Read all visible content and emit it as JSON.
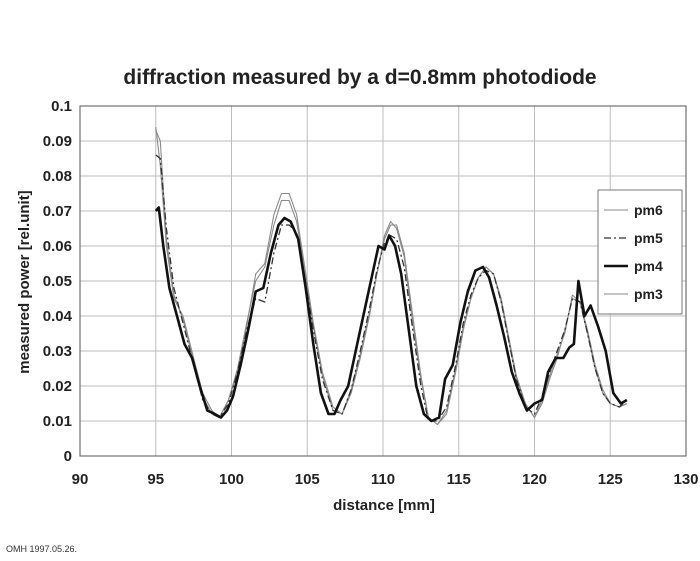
{
  "footer": "OMH 1997.05.26.",
  "colors": {
    "grid": "#bdbdbd",
    "axis": "#555555",
    "text": "#222222"
  },
  "chart_data": {
    "type": "line",
    "title": "diffraction measured by a d=0.8mm photodiode",
    "xlabel": "distance [mm]",
    "ylabel": "measured power [rel.unit]",
    "xlim": [
      90,
      130
    ],
    "ylim": [
      0,
      0.1
    ],
    "xticks": [
      90,
      95,
      100,
      105,
      110,
      115,
      120,
      125,
      130
    ],
    "yticks": [
      0,
      0.01,
      0.02,
      0.03,
      0.04,
      0.05,
      0.06,
      0.07,
      0.08,
      0.09,
      0.1
    ],
    "ytick_labels": [
      "0",
      "0.01",
      "0.02",
      "0.03",
      "0.04",
      "0.05",
      "0.06",
      "0.07",
      "0.08",
      "0.09",
      "0.1"
    ],
    "xtick_labels": [
      "90",
      "95",
      "100",
      "105",
      "110",
      "115",
      "120",
      "125",
      "130"
    ],
    "grid": true,
    "legend_position": "right",
    "series": [
      {
        "name": "pm6",
        "style": "thin",
        "x": [
          95,
          95.3,
          95.7,
          96.2,
          96.8,
          97.5,
          98.1,
          98.7,
          99.2,
          99.8,
          100.4,
          101,
          101.6,
          102.2,
          102.8,
          103.3,
          103.8,
          104.3,
          104.8,
          105.4,
          106,
          106.7,
          107.3,
          107.9,
          108.5,
          109.1,
          109.6,
          110.1,
          110.5,
          110.9,
          111.4,
          111.9,
          112.5,
          113,
          113.6,
          114.2,
          114.8,
          115.3,
          115.8,
          116.3,
          116.8,
          117.3,
          117.8,
          118.3,
          118.8,
          119.4,
          120,
          120.5,
          121,
          121.5,
          122,
          122.5,
          123,
          123.5,
          124,
          124.5,
          125,
          125.6,
          126.1
        ],
        "y": [
          0.094,
          0.083,
          0.06,
          0.045,
          0.04,
          0.028,
          0.018,
          0.013,
          0.011,
          0.016,
          0.024,
          0.037,
          0.052,
          0.055,
          0.069,
          0.075,
          0.075,
          0.069,
          0.055,
          0.038,
          0.024,
          0.014,
          0.012,
          0.018,
          0.028,
          0.04,
          0.052,
          0.062,
          0.066,
          0.066,
          0.058,
          0.042,
          0.023,
          0.011,
          0.009,
          0.012,
          0.024,
          0.036,
          0.045,
          0.051,
          0.054,
          0.052,
          0.045,
          0.034,
          0.023,
          0.015,
          0.011,
          0.015,
          0.022,
          0.028,
          0.036,
          0.045,
          0.044,
          0.036,
          0.026,
          0.019,
          0.015,
          0.014,
          0.015
        ]
      },
      {
        "name": "pm5",
        "style": "dashdot",
        "x": [
          95,
          95.3,
          95.7,
          96.2,
          96.8,
          97.5,
          98.1,
          98.7,
          99.2,
          99.8,
          100.4,
          101,
          101.6,
          102.2,
          102.8,
          103.3,
          103.8,
          104.3,
          104.8,
          105.4,
          106,
          106.7,
          107.3,
          107.9,
          108.5,
          109.1,
          109.6,
          110.1,
          110.5,
          110.9,
          111.4,
          111.9,
          112.5,
          113,
          113.6,
          114.2,
          114.8,
          115.3,
          115.8,
          116.3,
          116.8,
          117.3,
          117.8,
          118.3,
          118.8,
          119.4,
          120,
          120.5,
          121,
          121.5,
          122,
          122.5,
          123,
          123.5,
          124,
          124.5,
          125,
          125.6,
          126.1
        ],
        "y": [
          0.086,
          0.085,
          0.065,
          0.048,
          0.038,
          0.026,
          0.016,
          0.012,
          0.011,
          0.015,
          0.024,
          0.036,
          0.045,
          0.044,
          0.058,
          0.066,
          0.066,
          0.064,
          0.052,
          0.036,
          0.022,
          0.013,
          0.012,
          0.019,
          0.03,
          0.042,
          0.053,
          0.061,
          0.063,
          0.062,
          0.054,
          0.038,
          0.02,
          0.01,
          0.01,
          0.014,
          0.026,
          0.038,
          0.046,
          0.051,
          0.053,
          0.052,
          0.044,
          0.033,
          0.022,
          0.014,
          0.012,
          0.017,
          0.024,
          0.03,
          0.036,
          0.045,
          0.044,
          0.035,
          0.025,
          0.018,
          0.015,
          0.014,
          0.016
        ]
      },
      {
        "name": "pm4",
        "style": "thick",
        "x": [
          95,
          95.2,
          95.5,
          95.9,
          96.4,
          96.9,
          97.4,
          97.9,
          98.4,
          98.9,
          99.3,
          99.7,
          100.1,
          100.6,
          101.1,
          101.6,
          102.1,
          102.6,
          103.1,
          103.5,
          103.9,
          104.4,
          104.9,
          105.4,
          105.9,
          106.4,
          106.8,
          107.2,
          107.7,
          108.3,
          108.8,
          109.3,
          109.7,
          110.1,
          110.4,
          110.8,
          111.2,
          111.7,
          112.2,
          112.7,
          113.2,
          113.7,
          114.1,
          114.6,
          115.1,
          115.6,
          116.1,
          116.6,
          117,
          117.5,
          118,
          118.5,
          119,
          119.5,
          120,
          120.5,
          120.9,
          121.4,
          121.9,
          122.3,
          122.6,
          122.9,
          123.3,
          123.7,
          124.2,
          124.7,
          125.2,
          125.7,
          126.1
        ],
        "y": [
          0.07,
          0.071,
          0.06,
          0.048,
          0.04,
          0.032,
          0.028,
          0.02,
          0.013,
          0.012,
          0.011,
          0.013,
          0.017,
          0.026,
          0.036,
          0.047,
          0.048,
          0.058,
          0.066,
          0.068,
          0.067,
          0.062,
          0.048,
          0.032,
          0.018,
          0.012,
          0.012,
          0.016,
          0.02,
          0.032,
          0.042,
          0.052,
          0.06,
          0.059,
          0.063,
          0.06,
          0.052,
          0.036,
          0.02,
          0.012,
          0.01,
          0.011,
          0.022,
          0.026,
          0.038,
          0.047,
          0.053,
          0.054,
          0.051,
          0.043,
          0.034,
          0.024,
          0.018,
          0.013,
          0.015,
          0.016,
          0.024,
          0.028,
          0.028,
          0.031,
          0.032,
          0.05,
          0.04,
          0.043,
          0.037,
          0.03,
          0.018,
          0.015,
          0.016
        ]
      },
      {
        "name": "pm3",
        "style": "thin",
        "x": [
          95,
          95.3,
          95.7,
          96.2,
          96.8,
          97.5,
          98.1,
          98.7,
          99.2,
          99.8,
          100.4,
          101,
          101.6,
          102.2,
          102.8,
          103.3,
          103.8,
          104.3,
          104.8,
          105.4,
          106,
          106.7,
          107.3,
          107.9,
          108.5,
          109.1,
          109.6,
          110.1,
          110.5,
          110.9,
          111.4,
          111.9,
          112.5,
          113,
          113.6,
          114.2,
          114.8,
          115.3,
          115.8,
          116.3,
          116.8,
          117.3,
          117.8,
          118.3,
          118.8,
          119.4,
          120,
          120.5,
          121,
          121.5,
          122,
          122.5,
          123,
          123.5,
          124,
          124.5,
          125,
          125.6,
          126.1
        ],
        "y": [
          0.093,
          0.09,
          0.062,
          0.046,
          0.039,
          0.027,
          0.017,
          0.012,
          0.011,
          0.016,
          0.025,
          0.038,
          0.05,
          0.054,
          0.066,
          0.073,
          0.073,
          0.067,
          0.054,
          0.037,
          0.023,
          0.013,
          0.012,
          0.019,
          0.029,
          0.041,
          0.052,
          0.063,
          0.067,
          0.065,
          0.057,
          0.04,
          0.022,
          0.011,
          0.009,
          0.013,
          0.025,
          0.037,
          0.045,
          0.051,
          0.054,
          0.052,
          0.044,
          0.033,
          0.022,
          0.015,
          0.011,
          0.016,
          0.023,
          0.029,
          0.035,
          0.046,
          0.044,
          0.035,
          0.025,
          0.018,
          0.015,
          0.014,
          0.015
        ]
      }
    ]
  }
}
